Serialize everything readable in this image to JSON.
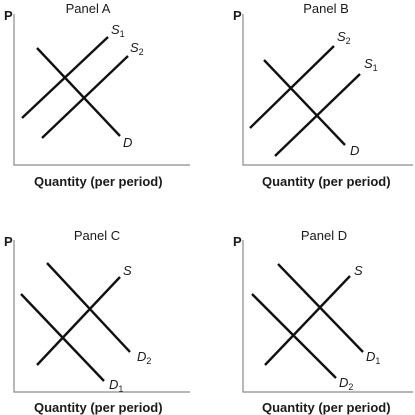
{
  "figure": {
    "y_axis_label": "P",
    "x_axis_label": "Quantity (per period)",
    "panels": [
      {
        "title": "Panel A",
        "curves": [
          {
            "kind": "supply",
            "label": "S",
            "sub": "1"
          },
          {
            "kind": "supply",
            "label": "S",
            "sub": "2"
          },
          {
            "kind": "demand",
            "label": "D",
            "sub": ""
          }
        ]
      },
      {
        "title": "Panel B",
        "curves": [
          {
            "kind": "supply",
            "label": "S",
            "sub": "2"
          },
          {
            "kind": "supply",
            "label": "S",
            "sub": "1"
          },
          {
            "kind": "demand",
            "label": "D",
            "sub": ""
          }
        ]
      },
      {
        "title": "Panel C",
        "curves": [
          {
            "kind": "supply",
            "label": "S",
            "sub": ""
          },
          {
            "kind": "demand",
            "label": "D",
            "sub": "2"
          },
          {
            "kind": "demand",
            "label": "D",
            "sub": "1"
          }
        ]
      },
      {
        "title": "Panel D",
        "curves": [
          {
            "kind": "supply",
            "label": "S",
            "sub": ""
          },
          {
            "kind": "demand",
            "label": "D",
            "sub": "1"
          },
          {
            "kind": "demand",
            "label": "D",
            "sub": "2"
          }
        ]
      }
    ]
  }
}
